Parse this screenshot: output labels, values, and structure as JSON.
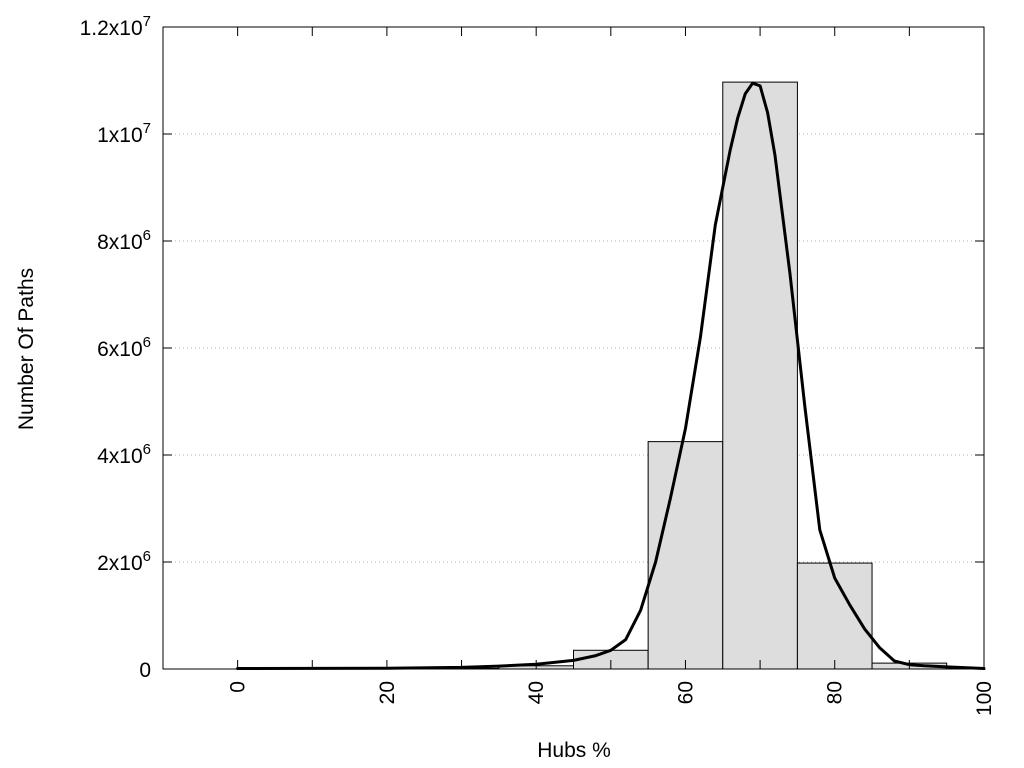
{
  "chart_data": {
    "type": "bar",
    "title": "",
    "xlabel": "Hubs %",
    "ylabel": "Number Of Paths",
    "xlim": [
      -10,
      100
    ],
    "ylim": [
      0,
      12000000
    ],
    "grid": "horizontal dotted",
    "x_ticks": [
      {
        "value": 0,
        "label": "0"
      },
      {
        "value": 20,
        "label": "20"
      },
      {
        "value": 40,
        "label": "40"
      },
      {
        "value": 60,
        "label": "60"
      },
      {
        "value": 80,
        "label": "80"
      },
      {
        "value": 100,
        "label": "100"
      }
    ],
    "y_ticks": [
      {
        "value": 0,
        "label": "0",
        "mant": "",
        "exp": ""
      },
      {
        "value": 2000000,
        "label": "2x10^6",
        "mant": "2x10",
        "exp": "6"
      },
      {
        "value": 4000000,
        "label": "4x10^6",
        "mant": "4x10",
        "exp": "6"
      },
      {
        "value": 6000000,
        "label": "6x10^6",
        "mant": "6x10",
        "exp": "6"
      },
      {
        "value": 8000000,
        "label": "8x10^6",
        "mant": "8x10",
        "exp": "6"
      },
      {
        "value": 10000000,
        "label": "1x10^7",
        "mant": "1x10",
        "exp": "7"
      },
      {
        "value": 12000000,
        "label": "1.2x10^7",
        "mant": "1.2x10",
        "exp": "7"
      }
    ],
    "bars": [
      {
        "x0": 0,
        "x1": 5,
        "value": 0
      },
      {
        "x0": 5,
        "x1": 15,
        "value": 0
      },
      {
        "x0": 15,
        "x1": 25,
        "value": 0
      },
      {
        "x0": 25,
        "x1": 35,
        "value": 10000
      },
      {
        "x0": 35,
        "x1": 45,
        "value": 60000
      },
      {
        "x0": 45,
        "x1": 55,
        "value": 350000
      },
      {
        "x0": 55,
        "x1": 65,
        "value": 4250000
      },
      {
        "x0": 65,
        "x1": 75,
        "value": 10970000
      },
      {
        "x0": 75,
        "x1": 85,
        "value": 1980000
      },
      {
        "x0": 85,
        "x1": 95,
        "value": 110000
      },
      {
        "x0": 95,
        "x1": 100,
        "value": 0
      }
    ],
    "curve": {
      "x": [
        0,
        10,
        20,
        30,
        35,
        40,
        45,
        48,
        50,
        52,
        54,
        56,
        58,
        60,
        62,
        64,
        66,
        67,
        68,
        69,
        70,
        71,
        72,
        74,
        76,
        78,
        80,
        82,
        84,
        86,
        88,
        90,
        92,
        95,
        100
      ],
      "y": [
        10000,
        12000,
        15000,
        30000,
        55000,
        90000,
        160000,
        250000,
        350000,
        550000,
        1100000,
        2000000,
        3200000,
        4500000,
        6200000,
        8300000,
        9700000,
        10300000,
        10750000,
        10950000,
        10900000,
        10400000,
        9600000,
        7400000,
        4900000,
        2600000,
        1700000,
        1200000,
        750000,
        400000,
        150000,
        80000,
        60000,
        40000,
        10000
      ]
    },
    "colors": {
      "bar_fill": "#dddddd",
      "bar_stroke": "#000000",
      "curve": "#000000",
      "grid": "#b0b0b0"
    }
  }
}
